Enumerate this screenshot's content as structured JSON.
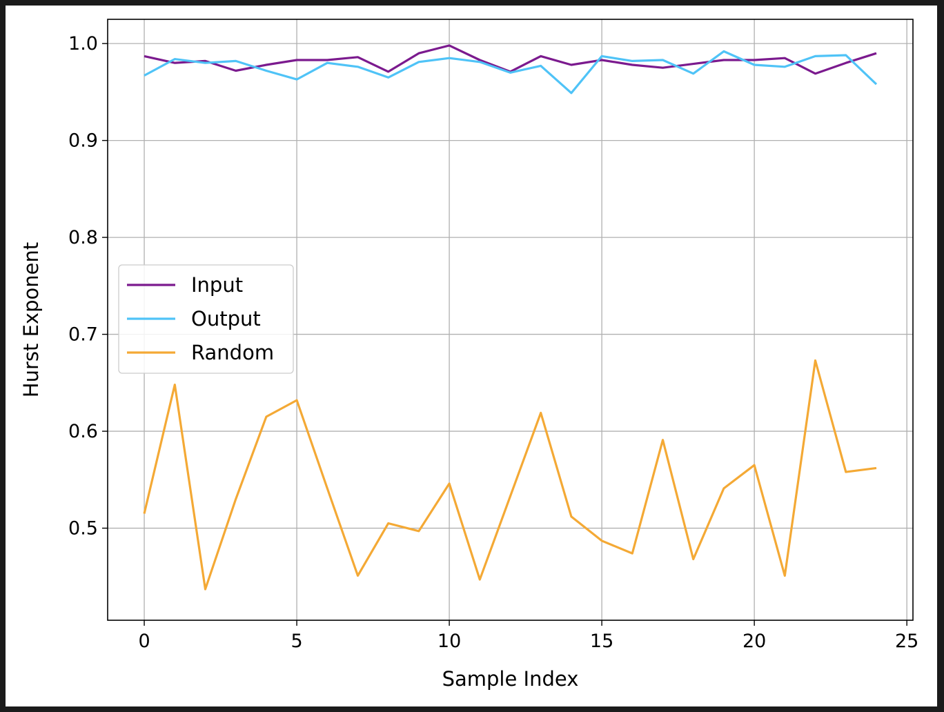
{
  "chart_data": {
    "type": "line",
    "title": "",
    "xlabel": "Sample Index",
    "ylabel": "Hurst Exponent",
    "xlim": [
      -1.2,
      25.2
    ],
    "ylim": [
      0.405,
      1.025
    ],
    "xticks": [
      0,
      5,
      10,
      15,
      20,
      25
    ],
    "yticks": [
      0.5,
      0.6,
      0.7,
      0.8,
      0.9,
      1.0
    ],
    "xtick_labels": [
      "0",
      "5",
      "10",
      "15",
      "20",
      "25"
    ],
    "ytick_labels": [
      "0.5",
      "0.6",
      "0.7",
      "0.8",
      "0.9",
      "1.0"
    ],
    "grid": true,
    "legend_position": "center-left",
    "x": [
      0,
      1,
      2,
      3,
      4,
      5,
      6,
      7,
      8,
      9,
      10,
      11,
      12,
      13,
      14,
      15,
      16,
      17,
      18,
      19,
      20,
      21,
      22,
      23,
      24
    ],
    "series": [
      {
        "name": "Input",
        "color": "#7b1a8e",
        "values": [
          0.987,
          0.98,
          0.982,
          0.972,
          0.978,
          0.983,
          0.983,
          0.986,
          0.971,
          0.99,
          0.998,
          0.983,
          0.971,
          0.987,
          0.978,
          0.983,
          0.978,
          0.975,
          0.979,
          0.983,
          0.983,
          0.985,
          0.969,
          0.98,
          0.99
        ]
      },
      {
        "name": "Output",
        "color": "#4fc3f7",
        "values": [
          0.967,
          0.984,
          0.98,
          0.982,
          0.972,
          0.963,
          0.98,
          0.976,
          0.965,
          0.981,
          0.985,
          0.981,
          0.97,
          0.977,
          0.949,
          0.987,
          0.982,
          0.983,
          0.969,
          0.992,
          0.978,
          0.976,
          0.987,
          0.988,
          0.958
        ]
      },
      {
        "name": "Random",
        "color": "#f4a935",
        "values": [
          0.515,
          0.648,
          0.437,
          0.53,
          0.615,
          0.632,
          0.541,
          0.451,
          0.505,
          0.497,
          0.546,
          0.447,
          0.533,
          0.619,
          0.512,
          0.487,
          0.474,
          0.591,
          0.468,
          0.541,
          0.565,
          0.451,
          0.673,
          0.558,
          0.562
        ]
      }
    ]
  }
}
